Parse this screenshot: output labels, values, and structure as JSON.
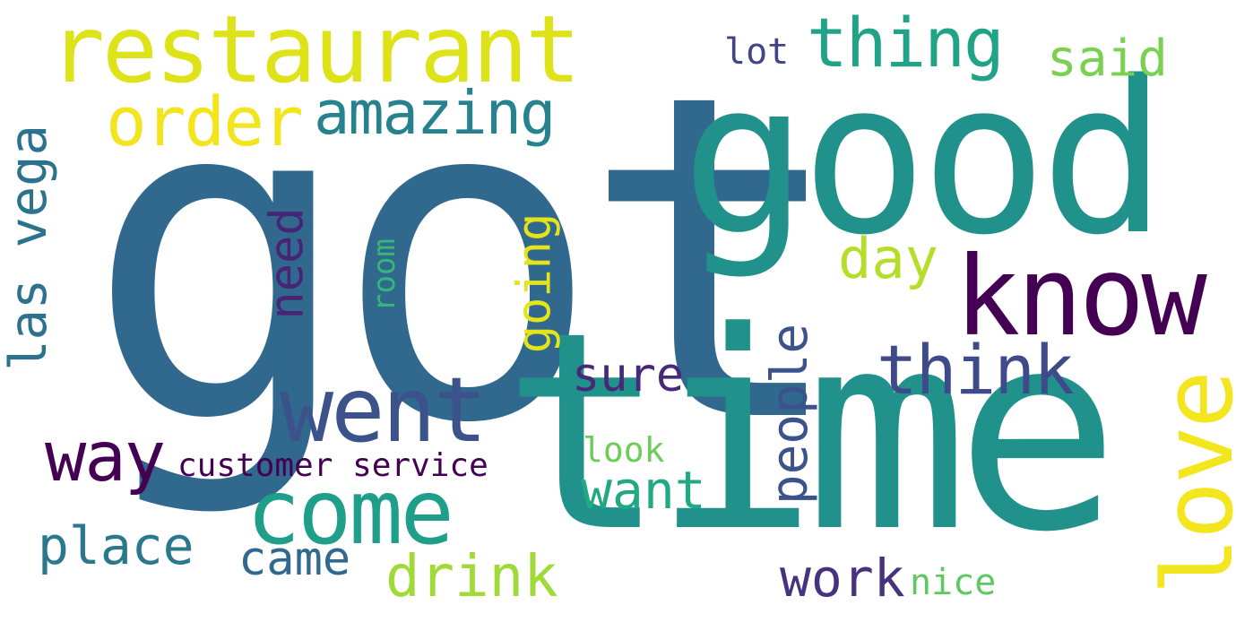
{
  "words": {
    "got": {
      "text": "got",
      "color": "#31688e"
    },
    "time": {
      "text": "time",
      "color": "#21918c"
    },
    "good": {
      "text": "good",
      "color": "#21918c"
    },
    "restaurant": {
      "text": "restaurant",
      "color": "#dde318"
    },
    "know": {
      "text": "know",
      "color": "#440154"
    },
    "went": {
      "text": "went",
      "color": "#3b528b"
    },
    "come": {
      "text": "come",
      "color": "#1f9e89"
    },
    "thing": {
      "text": "thing",
      "color": "#20a386"
    },
    "order": {
      "text": "order",
      "color": "#f2e51d"
    },
    "amazing": {
      "text": "amazing",
      "color": "#26828e"
    },
    "said": {
      "text": "said",
      "color": "#7ad151"
    },
    "lot": {
      "text": "lot",
      "color": "#414487"
    },
    "think": {
      "text": "think",
      "color": "#3e4a89"
    },
    "day": {
      "text": "day",
      "color": "#b5de2b"
    },
    "way": {
      "text": "way",
      "color": "#440154"
    },
    "customer_service": {
      "text": "customer service",
      "color": "#440154"
    },
    "place": {
      "text": "place",
      "color": "#2a788e"
    },
    "came": {
      "text": "came",
      "color": "#31688e"
    },
    "drink": {
      "text": "drink",
      "color": "#a0da39"
    },
    "sure": {
      "text": "sure",
      "color": "#482878"
    },
    "want": {
      "text": "want",
      "color": "#22a884"
    },
    "look": {
      "text": "look",
      "color": "#6ccd5a"
    },
    "work": {
      "text": "work",
      "color": "#46327e"
    },
    "nice": {
      "text": "nice",
      "color": "#5ec962"
    },
    "las_vega": {
      "text": "las vega",
      "color": "#2c728e"
    },
    "need": {
      "text": "need",
      "color": "#482475"
    },
    "room": {
      "text": "room",
      "color": "#35b779"
    },
    "going": {
      "text": "going",
      "color": "#e5e419"
    },
    "people": {
      "text": "people",
      "color": "#3b528b"
    },
    "love": {
      "text": "love",
      "color": "#f4e61e"
    }
  }
}
